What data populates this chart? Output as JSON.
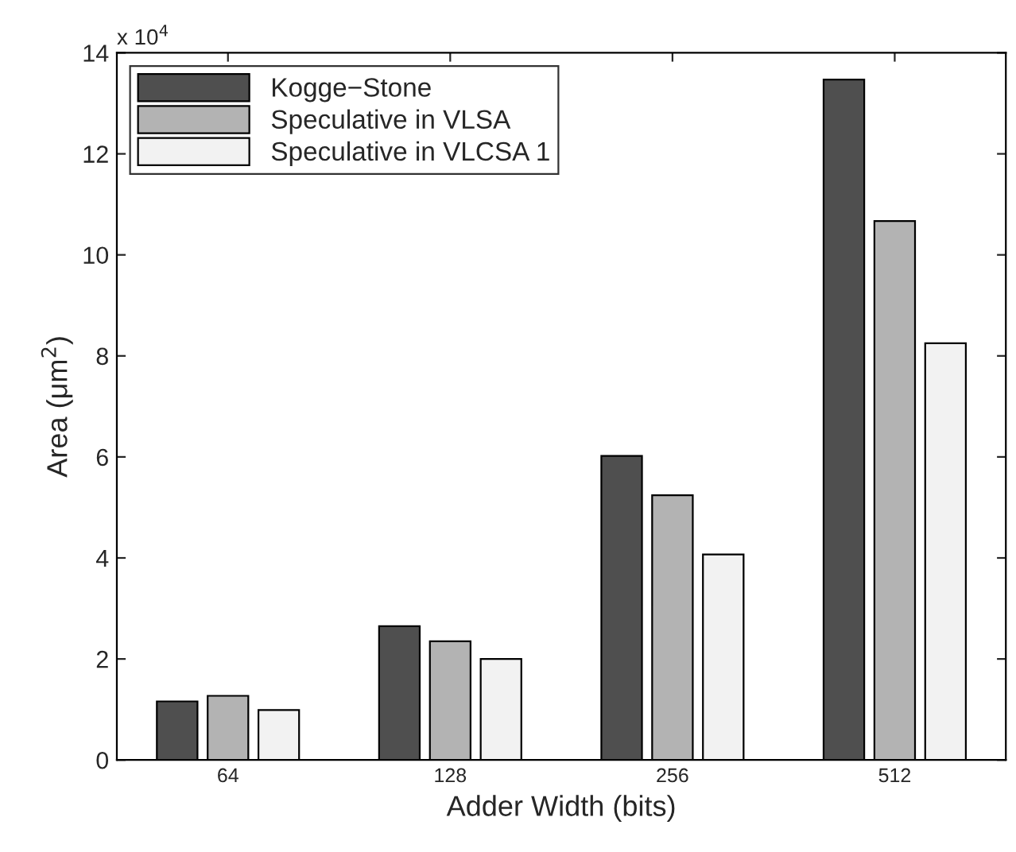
{
  "chart_data": {
    "type": "bar",
    "xlabel": "Adder Width (bits)",
    "ylabel": "Area (μm$^{2}$)",
    "categories": [
      "64",
      "128",
      "256",
      "512"
    ],
    "series": [
      {
        "name": "Kogge−Stone",
        "color": "#4f4f4f",
        "values": [
          1.16,
          2.65,
          6.02,
          13.47
        ]
      },
      {
        "name": "Speculative in VLSA",
        "color": "#b3b3b3",
        "values": [
          1.27,
          2.35,
          5.24,
          10.67
        ]
      },
      {
        "name": "Speculative in VLCSA 1",
        "color": "#f2f2f2",
        "values": [
          0.99,
          2.0,
          4.07,
          8.25
        ]
      }
    ],
    "ylim": [
      0,
      14
    ],
    "yticks": [
      0,
      2,
      4,
      6,
      8,
      10,
      12,
      14
    ],
    "annotations": [
      "x 10$^{4}$"
    ],
    "legend": "top left",
    "grid": false
  }
}
